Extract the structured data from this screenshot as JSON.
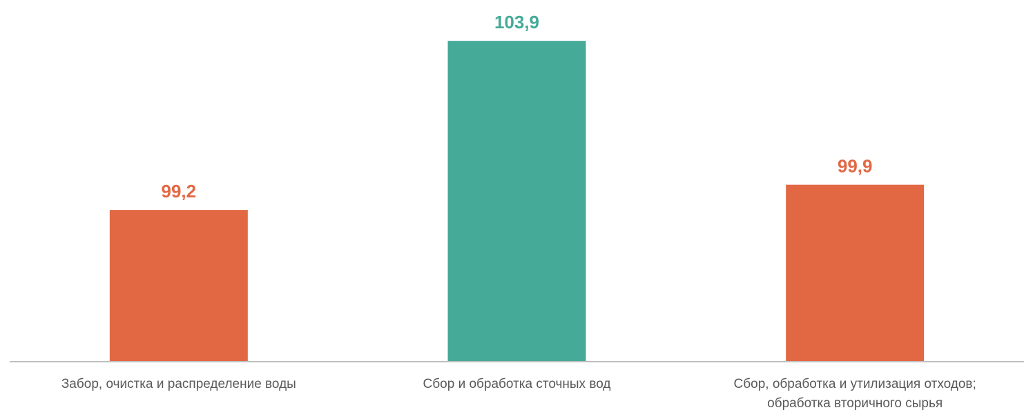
{
  "chart_data": {
    "type": "bar",
    "categories": [
      [
        "Забор, очистка и распределение воды"
      ],
      [
        "Сбор и обработка сточных вод"
      ],
      [
        "Сбор, обработка и утилизация отходов;",
        "обработка вторичного сырья"
      ]
    ],
    "values": [
      99.2,
      103.9,
      99.9
    ],
    "value_labels": [
      "99,2",
      "103,9",
      "99,9"
    ],
    "bar_colors": [
      "#E26844",
      "#45AA98",
      "#E26844"
    ],
    "label_colors": [
      "#E26844",
      "#45AA98",
      "#E26844"
    ],
    "axis_color": "#BFBFBF",
    "label_text_color": "#595959",
    "ylim": [
      95,
      104
    ],
    "grid": false,
    "legend": "none",
    "title": "",
    "xlabel": "",
    "ylabel": ""
  }
}
